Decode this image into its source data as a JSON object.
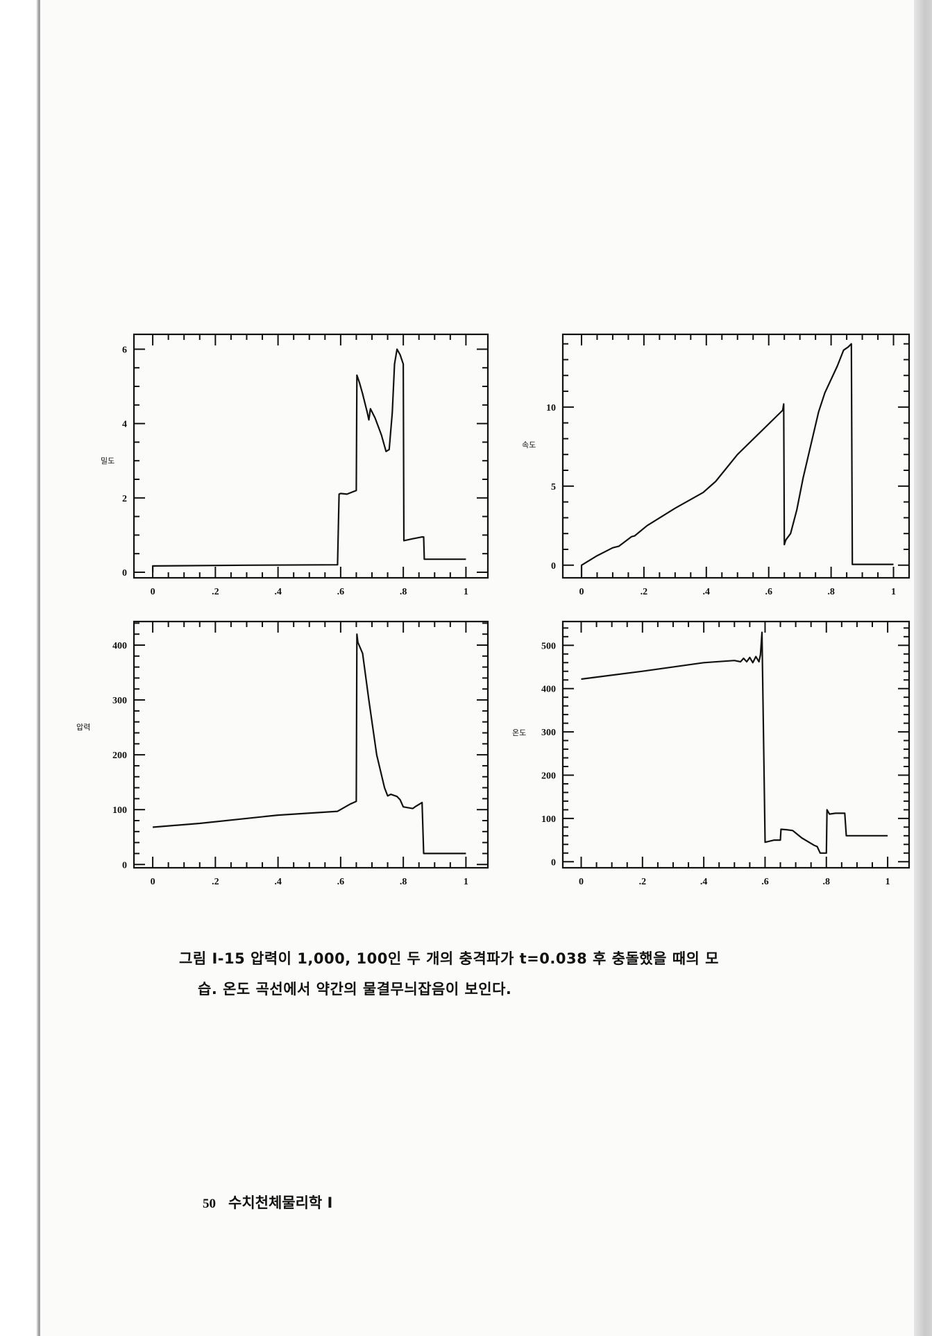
{
  "caption": {
    "line1": "그림 I-15  압력이 1,000, 100인 두 개의 충격파가 t=0.038 후 충돌했을 때의 모",
    "line2": "습. 온도 곡선에서 약간의 물결무늬잡음이 보인다."
  },
  "footer": {
    "page_number": "50",
    "book_title": "수치천체물리학 Ⅰ"
  },
  "chart_data": [
    {
      "type": "line",
      "ylabel": "밀도",
      "xlim": [
        -0.06,
        1.07
      ],
      "ylim": [
        -0.15,
        6.4
      ],
      "xticks": [
        "0",
        ".2",
        ".4",
        ".6",
        ".8",
        "1"
      ],
      "yticks": [
        "0",
        "2",
        "4",
        "6"
      ],
      "x": [
        0,
        0,
        0.3,
        0.59,
        0.595,
        0.6,
        0.62,
        0.65,
        0.652,
        0.66,
        0.67,
        0.685,
        0.69,
        0.695,
        0.71,
        0.73,
        0.745,
        0.755,
        0.765,
        0.772,
        0.78,
        0.79,
        0.8,
        0.802,
        0.83,
        0.86,
        0.865,
        0.867,
        1.0
      ],
      "y": [
        0,
        0.17,
        0.19,
        0.2,
        2.1,
        2.12,
        2.1,
        2.2,
        5.3,
        5.1,
        4.8,
        4.3,
        4.1,
        4.4,
        4.15,
        3.7,
        3.25,
        3.3,
        4.3,
        5.6,
        6.0,
        5.85,
        5.6,
        0.85,
        0.9,
        0.95,
        0.95,
        0.35,
        0.35
      ]
    },
    {
      "type": "line",
      "ylabel": "속도",
      "xlim": [
        -0.06,
        1.05
      ],
      "ylim": [
        -0.8,
        14.6
      ],
      "xticks": [
        "0",
        ".2",
        ".4",
        ".6",
        ".8",
        "1"
      ],
      "yticks": [
        "0",
        "5",
        "10"
      ],
      "x": [
        0,
        0,
        0.05,
        0.1,
        0.12,
        0.16,
        0.17,
        0.21,
        0.3,
        0.39,
        0.43,
        0.5,
        0.645,
        0.648,
        0.65,
        0.655,
        0.67,
        0.69,
        0.71,
        0.735,
        0.76,
        0.78,
        0.82,
        0.84,
        0.855,
        0.865,
        0.868,
        1.0
      ],
      "y": [
        -0.7,
        0,
        0.6,
        1.1,
        1.2,
        1.8,
        1.85,
        2.5,
        3.6,
        4.6,
        5.3,
        7.0,
        9.8,
        10.2,
        1.3,
        1.6,
        2.0,
        3.5,
        5.5,
        7.6,
        9.7,
        10.9,
        12.6,
        13.6,
        13.8,
        14.0,
        0.05,
        0.05
      ]
    },
    {
      "type": "line",
      "ylabel": "압력",
      "xlim": [
        -0.06,
        1.07
      ],
      "ylim": [
        -6,
        443
      ],
      "xticks": [
        "0",
        ".2",
        ".4",
        ".6",
        ".8",
        "1"
      ],
      "yticks": [
        "0",
        "100",
        "200",
        "300",
        "400"
      ],
      "x": [
        0,
        0.15,
        0.4,
        0.59,
        0.63,
        0.65,
        0.652,
        0.655,
        0.67,
        0.69,
        0.715,
        0.74,
        0.75,
        0.76,
        0.78,
        0.79,
        0.8,
        0.83,
        0.84,
        0.86,
        0.865,
        1.0
      ],
      "y": [
        68,
        75,
        90,
        97,
        110,
        115,
        420,
        405,
        385,
        300,
        200,
        140,
        125,
        128,
        124,
        118,
        105,
        102,
        106,
        113,
        20,
        20
      ]
    },
    {
      "type": "line",
      "ylabel": "온도",
      "xlim": [
        -0.06,
        1.07
      ],
      "ylim": [
        -14,
        555
      ],
      "xticks": [
        "0",
        ".2",
        ".4",
        ".6",
        ".8",
        "1"
      ],
      "yticks": [
        "0",
        "100",
        "200",
        "300",
        "400",
        "500"
      ],
      "x": [
        0,
        0.2,
        0.4,
        0.5,
        0.52,
        0.53,
        0.54,
        0.55,
        0.56,
        0.57,
        0.58,
        0.585,
        0.59,
        0.6,
        0.63,
        0.65,
        0.652,
        0.67,
        0.69,
        0.72,
        0.76,
        0.77,
        0.78,
        0.8,
        0.802,
        0.81,
        0.83,
        0.86,
        0.865,
        1.0
      ],
      "y": [
        422,
        440,
        460,
        465,
        462,
        470,
        462,
        472,
        460,
        474,
        462,
        478,
        530,
        45,
        50,
        50,
        75,
        74,
        72,
        55,
        38,
        35,
        20,
        20,
        120,
        110,
        112,
        112,
        60,
        60
      ]
    }
  ]
}
